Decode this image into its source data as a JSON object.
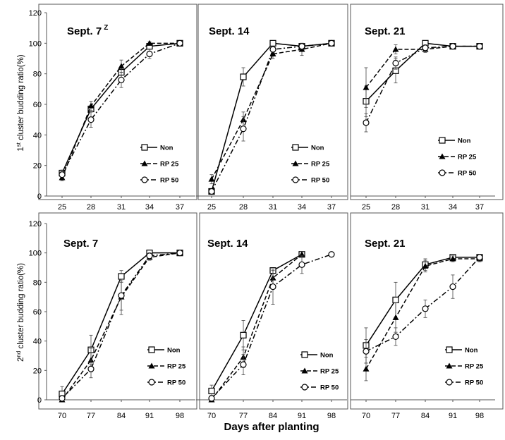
{
  "figure": {
    "xlabel": "Days after planting",
    "ylabel_top": "1st cluster budding ratio(%)",
    "ylabel_bottom": "2nd cluster budding ratio(%)"
  },
  "series_styles": {
    "Non": {
      "marker": "square",
      "dash": "solid",
      "color": "#000000"
    },
    "RP 25": {
      "marker": "triangle",
      "dash": "dash",
      "color": "#000000"
    },
    "RP 50": {
      "marker": "circle",
      "dash": "dashdot",
      "color": "#000000"
    }
  },
  "chart_data": [
    {
      "type": "line",
      "row": 1,
      "col": 1,
      "title": "Sept. 7",
      "title_sup": "Z",
      "x": [
        25,
        28,
        31,
        34,
        37
      ],
      "ylim": [
        0,
        120
      ],
      "yticks": [
        0,
        20,
        40,
        60,
        80,
        100,
        120
      ],
      "legend": "bottom-right",
      "grid": false,
      "series": [
        {
          "name": "Non",
          "values": [
            15,
            57,
            81,
            98,
            100
          ],
          "err": [
            2,
            2,
            4,
            2,
            1
          ]
        },
        {
          "name": "RP 25",
          "values": [
            12,
            59,
            85,
            100,
            100
          ],
          "err": [
            2,
            3,
            4,
            1,
            1
          ]
        },
        {
          "name": "RP 50",
          "values": [
            14,
            50,
            76,
            93,
            100
          ],
          "err": [
            2,
            5,
            5,
            3,
            1
          ]
        }
      ]
    },
    {
      "type": "line",
      "row": 1,
      "col": 2,
      "title": "Sept. 14",
      "x": [
        25,
        28,
        31,
        34,
        37
      ],
      "ylim": [
        0,
        120
      ],
      "yticks": [
        0,
        20,
        40,
        60,
        80,
        100,
        120
      ],
      "legend": "bottom-right",
      "grid": false,
      "series": [
        {
          "name": "Non",
          "values": [
            3,
            78,
            100,
            98,
            100
          ],
          "err": [
            1,
            6,
            1,
            2,
            1
          ]
        },
        {
          "name": "RP 25",
          "values": [
            11,
            50,
            93,
            96,
            100
          ],
          "err": [
            3,
            5,
            3,
            4,
            1
          ]
        },
        {
          "name": "RP 50",
          "values": [
            3,
            44,
            96,
            98,
            100
          ],
          "err": [
            1,
            8,
            2,
            2,
            1
          ]
        }
      ]
    },
    {
      "type": "line",
      "row": 1,
      "col": 3,
      "title": "Sept. 21",
      "x": [
        25,
        28,
        31,
        34,
        37
      ],
      "ylim": [
        0,
        120
      ],
      "yticks": [
        0,
        20,
        40,
        60,
        80,
        100,
        120
      ],
      "legend": "bottom-right",
      "grid": false,
      "series": [
        {
          "name": "Non",
          "values": [
            62,
            82,
            100,
            98,
            98
          ],
          "err": [
            10,
            8,
            1,
            1,
            1
          ]
        },
        {
          "name": "RP 25",
          "values": [
            71,
            96,
            96,
            98,
            98
          ],
          "err": [
            13,
            3,
            2,
            1,
            1
          ]
        },
        {
          "name": "RP 50",
          "values": [
            48,
            87,
            97,
            98,
            98
          ],
          "err": [
            6,
            4,
            2,
            1,
            1
          ]
        }
      ]
    },
    {
      "type": "line",
      "row": 2,
      "col": 1,
      "title": "Sept. 7",
      "x": [
        70,
        77,
        84,
        91,
        98
      ],
      "ylim": [
        0,
        120
      ],
      "yticks": [
        0,
        20,
        40,
        60,
        80,
        100,
        120
      ],
      "legend": "bottom-right",
      "grid": false,
      "series": [
        {
          "name": "Non",
          "values": [
            4,
            34,
            84,
            100,
            100
          ],
          "err": [
            5,
            10,
            4,
            1,
            1
          ]
        },
        {
          "name": "RP 25",
          "values": [
            0,
            27,
            70,
            97,
            100
          ],
          "err": [
            2,
            8,
            12,
            2,
            1
          ]
        },
        {
          "name": "RP 50",
          "values": [
            1,
            21,
            71,
            98,
            100
          ],
          "err": [
            2,
            6,
            10,
            2,
            1
          ]
        }
      ]
    },
    {
      "type": "line",
      "row": 2,
      "col": 2,
      "title": "Sept. 14",
      "x": [
        70,
        77,
        84,
        91,
        98
      ],
      "ylim": [
        0,
        120
      ],
      "yticks": [
        0,
        20,
        40,
        60,
        80,
        100,
        120
      ],
      "legend": "bottom-right",
      "grid": false,
      "series": [
        {
          "name": "Non",
          "values": [
            6,
            44,
            88,
            99,
            null
          ],
          "err": [
            4,
            10,
            2,
            2,
            0
          ]
        },
        {
          "name": "RP 25",
          "values": [
            0,
            29,
            83,
            99,
            null
          ],
          "err": [
            2,
            7,
            5,
            2,
            0
          ]
        },
        {
          "name": "RP 50",
          "values": [
            1,
            24,
            77,
            92,
            99
          ],
          "err": [
            2,
            7,
            12,
            6,
            1
          ]
        }
      ]
    },
    {
      "type": "line",
      "row": 2,
      "col": 3,
      "title": "Sept. 21",
      "x": [
        70,
        77,
        84,
        91,
        98
      ],
      "ylim": [
        0,
        120
      ],
      "yticks": [
        0,
        20,
        40,
        60,
        80,
        100,
        120
      ],
      "legend": "bottom-right",
      "grid": false,
      "series": [
        {
          "name": "Non",
          "values": [
            37,
            68,
            92,
            97,
            97
          ],
          "err": [
            12,
            12,
            4,
            2,
            2
          ]
        },
        {
          "name": "RP 25",
          "values": [
            21,
            56,
            91,
            96,
            96
          ],
          "err": [
            8,
            10,
            4,
            2,
            2
          ]
        },
        {
          "name": "RP 50",
          "values": [
            33,
            43,
            62,
            77,
            97
          ],
          "err": [
            8,
            6,
            6,
            8,
            2
          ]
        }
      ]
    }
  ]
}
